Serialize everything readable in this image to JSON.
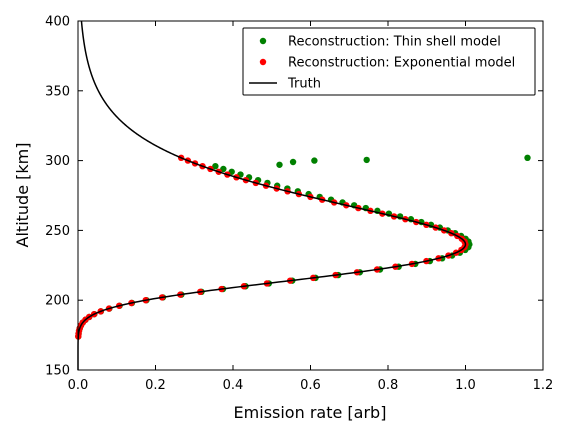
{
  "chart_data": {
    "type": "scatter",
    "xlabel": "Emission rate [arb]",
    "ylabel": "Altitude [km]",
    "xlim": [
      0.0,
      1.2
    ],
    "ylim": [
      150,
      400
    ],
    "xticks": [
      "0.0",
      "0.2",
      "0.4",
      "0.6",
      "0.8",
      "1.0",
      "1.2"
    ],
    "yticks": [
      "150",
      "200",
      "250",
      "300",
      "350",
      "400"
    ],
    "grid": false,
    "legend_position": "top-right",
    "truth_model": {
      "peak_altitude": 240,
      "scale_height": 28,
      "peak_value": 1.0
    },
    "series": [
      {
        "name": "Reconstruction: Thin shell model",
        "kind": "scatter",
        "color": "#008000",
        "altitude_range": [
          174,
          296
        ],
        "altitude_step": 2,
        "peak_factor": 1.01,
        "upper_shift": 0.03,
        "outliers": [
          {
            "x": 0.52,
            "y": 297
          },
          {
            "x": 0.555,
            "y": 299
          },
          {
            "x": 0.61,
            "y": 300
          },
          {
            "x": 0.745,
            "y": 300.5
          },
          {
            "x": 1.16,
            "y": 302
          }
        ]
      },
      {
        "name": "Reconstruction: Exponential model",
        "kind": "scatter",
        "color": "#ff0000",
        "altitude_range": [
          174,
          302
        ],
        "altitude_step": 2
      },
      {
        "name": "Truth",
        "kind": "line",
        "color": "#000000",
        "altitude_range": [
          150,
          400
        ]
      }
    ]
  }
}
